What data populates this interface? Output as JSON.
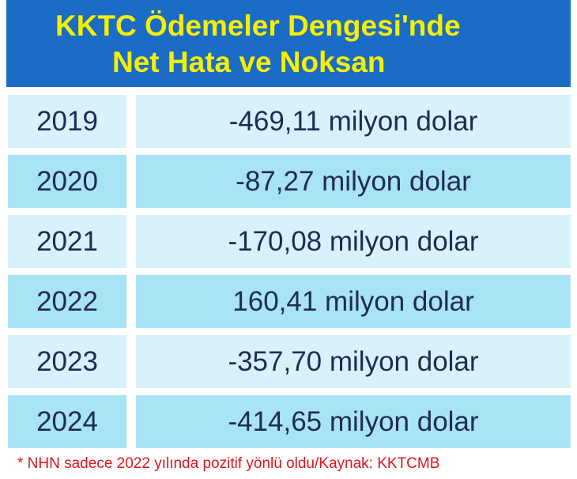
{
  "header": {
    "title_lines": [
      "KKTC Ödemeler Dengesi'nde",
      "Net Hata ve Noksan"
    ]
  },
  "table": {
    "rows": [
      [
        "2019",
        "-469,11 milyon dolar"
      ],
      [
        "2020",
        "-87,27 milyon dolar"
      ],
      [
        "2021",
        "-170,08 milyon dolar"
      ],
      [
        "2022",
        "160,41 milyon dolar"
      ],
      [
        "2023",
        "-357,70 milyon dolar"
      ],
      [
        "2024",
        "-414,65 milyon dolar"
      ]
    ]
  },
  "footnote": "* NHN sadece 2022 yılında pozitif yönlü oldu/Kaynak: KKTCMB"
}
